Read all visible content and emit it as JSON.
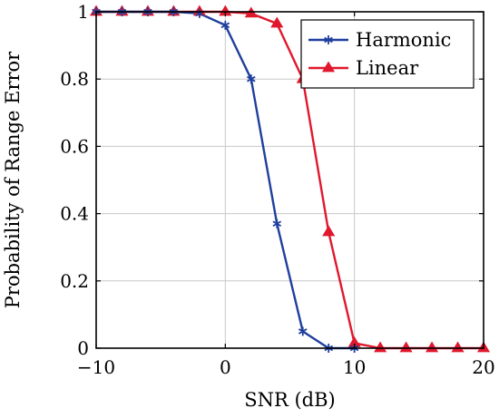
{
  "chart_data": {
    "type": "line",
    "title": "",
    "xlabel": "SNR (dB)",
    "ylabel": "Probability of Range Error",
    "xlim": [
      -10,
      20
    ],
    "ylim": [
      0,
      1
    ],
    "xticks": [
      -10,
      0,
      10,
      20
    ],
    "xtick_labels": [
      "−10",
      "0",
      "10",
      "20"
    ],
    "yticks": [
      0,
      0.2,
      0.4,
      0.6,
      0.8,
      1
    ],
    "ytick_labels": [
      "0",
      "0.2",
      "0.4",
      "0.6",
      "0.8",
      "1"
    ],
    "grid": true,
    "legend_position": "top-right",
    "series": [
      {
        "name": "Harmonic",
        "color": "#1f3f9e",
        "marker": "asterisk",
        "x": [
          -10,
          -8,
          -6,
          -4,
          -2,
          0,
          2,
          4,
          6,
          8,
          10
        ],
        "y": [
          1.0,
          1.0,
          1.0,
          1.0,
          0.995,
          0.96,
          0.8,
          0.37,
          0.05,
          0.0,
          0.0
        ]
      },
      {
        "name": "Linear",
        "color": "#e0182d",
        "marker": "triangle",
        "x": [
          -10,
          -8,
          -6,
          -4,
          -2,
          0,
          2,
          4,
          6,
          8,
          10,
          12,
          14,
          16,
          18,
          20
        ],
        "y": [
          1.0,
          1.0,
          1.0,
          1.0,
          1.0,
          1.0,
          0.995,
          0.965,
          0.8,
          0.345,
          0.015,
          0.0,
          0.0,
          0.0,
          0.0,
          0.0
        ]
      }
    ]
  }
}
